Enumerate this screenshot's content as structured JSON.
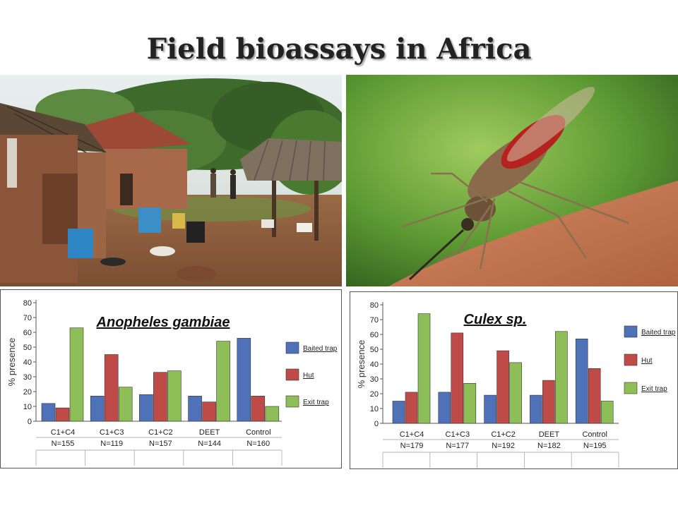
{
  "slide": {
    "title": "Field bioassays in Africa"
  },
  "colors": {
    "baited_trap": "#4f71b8",
    "hut": "#be4b48",
    "exit_trap": "#8ebe58"
  },
  "chart_data": [
    {
      "type": "bar",
      "title": "Anopheles gambiae",
      "ylabel": "% presence",
      "xlabel": "",
      "ylim": [
        0,
        80
      ],
      "yticks": [
        0,
        10,
        20,
        30,
        40,
        50,
        60,
        70,
        80
      ],
      "categories": [
        "C1+C4",
        "C1+C3",
        "C1+C2",
        "DEET",
        "Control"
      ],
      "sample_sizes": [
        "N=155",
        "N=119",
        "N=157",
        "N=144",
        "N=160"
      ],
      "series": [
        {
          "name": "Baited trap",
          "values": [
            12,
            17,
            18,
            17,
            56
          ]
        },
        {
          "name": "Hut",
          "values": [
            9,
            45,
            33,
            13,
            17
          ]
        },
        {
          "name": "Exit trap",
          "values": [
            63,
            23,
            34,
            54,
            10
          ]
        }
      ],
      "legend_position": "right",
      "grid": false
    },
    {
      "type": "bar",
      "title": "Culex sp.",
      "ylabel": "% presence",
      "xlabel": "",
      "ylim": [
        0,
        80
      ],
      "yticks": [
        0,
        10,
        20,
        30,
        40,
        50,
        60,
        70,
        80
      ],
      "categories": [
        "C1+C4",
        "C1+C3",
        "C1+C2",
        "DEET",
        "Control"
      ],
      "sample_sizes": [
        "N=179",
        "N=177",
        "N=192",
        "N=182",
        "N=195"
      ],
      "series": [
        {
          "name": "Baited trap",
          "values": [
            15,
            21,
            19,
            19,
            57
          ]
        },
        {
          "name": "Hut",
          "values": [
            21,
            61,
            49,
            29,
            37
          ]
        },
        {
          "name": "Exit trap",
          "values": [
            74,
            27,
            41,
            62,
            15
          ]
        }
      ],
      "legend_position": "right",
      "grid": false
    }
  ]
}
